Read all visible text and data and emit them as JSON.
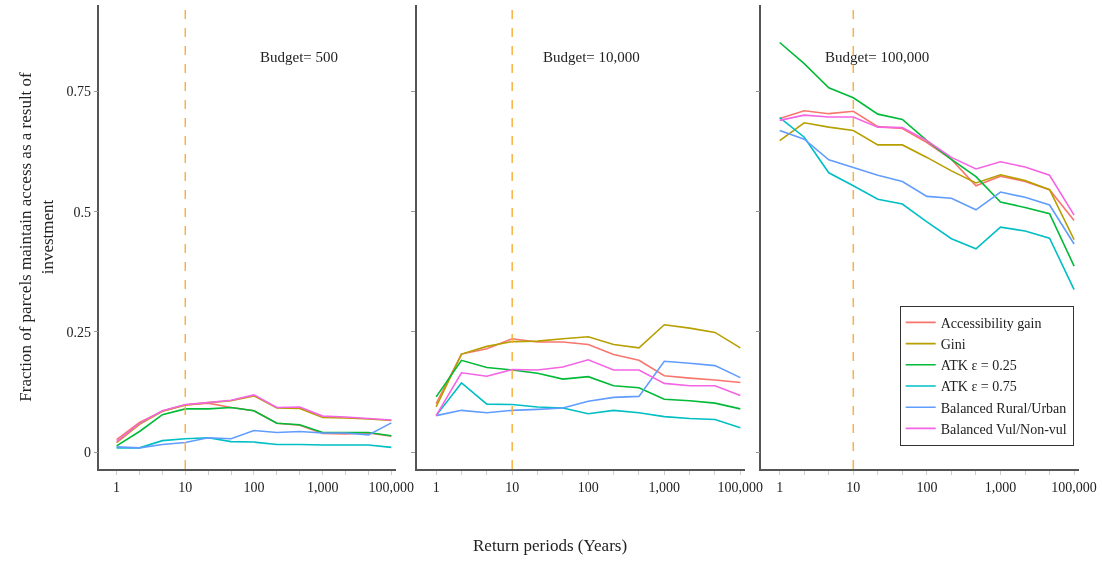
{
  "chart_data": [
    {
      "type": "line",
      "title": "Budget= 500",
      "ylabel": "Fraction of parcels maintain access as a result of investment",
      "categories": [
        "1",
        null,
        null,
        "10",
        null,
        null,
        "100",
        null,
        null,
        "1,000",
        null,
        null,
        "100,000"
      ],
      "ylim": [
        -0.035,
        0.93
      ],
      "yticks": [
        0,
        0.25,
        0.5,
        0.75
      ],
      "grid": false,
      "legend": false,
      "ref_lines": [
        {
          "axis": "x",
          "value": "10",
          "color": "#fbb13c",
          "line_style": "dashed"
        }
      ],
      "series": [
        {
          "color": "#f8766d",
          "values": [
            0.026,
            0.062,
            0.085,
            0.098,
            0.102,
            0.093,
            0.086,
            0.06,
            0.056,
            0.039,
            0.038,
            0.04,
            0.033
          ]
        },
        {
          "color": "#b79f00",
          "values": [
            0.02,
            0.058,
            0.085,
            0.098,
            0.103,
            0.107,
            0.117,
            0.092,
            0.091,
            0.072,
            0.071,
            0.069,
            0.066
          ]
        },
        {
          "color": "#00ba38",
          "values": [
            0.013,
            0.043,
            0.078,
            0.09,
            0.09,
            0.093,
            0.086,
            0.06,
            0.057,
            0.041,
            0.041,
            0.041,
            0.034
          ]
        },
        {
          "color": "#00bfc4",
          "values": [
            0.009,
            0.009,
            0.024,
            0.028,
            0.03,
            0.022,
            0.021,
            0.016,
            0.016,
            0.015,
            0.015,
            0.015,
            0.01
          ]
        },
        {
          "color": "#619cff",
          "values": [
            0.011,
            0.009,
            0.016,
            0.02,
            0.03,
            0.028,
            0.045,
            0.041,
            0.043,
            0.04,
            0.04,
            0.036,
            0.061
          ]
        },
        {
          "color": "#f564e3",
          "values": [
            0.022,
            0.06,
            0.086,
            0.099,
            0.103,
            0.108,
            0.119,
            0.093,
            0.094,
            0.075,
            0.073,
            0.07,
            0.067
          ]
        }
      ]
    },
    {
      "type": "line",
      "title": "Budget= 10,000",
      "xlabel": "Return periods (Years)",
      "categories": [
        "1",
        null,
        null,
        "10",
        null,
        null,
        "100",
        null,
        null,
        "1,000",
        null,
        null,
        "100,000"
      ],
      "ylim": [
        -0.035,
        0.93
      ],
      "yticks": [
        0,
        0.25,
        0.5,
        0.75
      ],
      "tick_labels": "x",
      "grid": false,
      "legend": false,
      "ref_lines": [
        {
          "axis": "x",
          "value": "10",
          "color": "#fbb13c",
          "line_style": "dashed"
        }
      ],
      "series": [
        {
          "color": "#f8766d",
          "values": [
            0.101,
            0.204,
            0.215,
            0.236,
            0.229,
            0.229,
            0.224,
            0.203,
            0.191,
            0.159,
            0.154,
            0.15,
            0.145
          ]
        },
        {
          "color": "#b79f00",
          "values": [
            0.094,
            0.204,
            0.22,
            0.23,
            0.231,
            0.236,
            0.24,
            0.224,
            0.217,
            0.265,
            0.258,
            0.249,
            0.217
          ]
        },
        {
          "color": "#00ba38",
          "values": [
            0.115,
            0.191,
            0.176,
            0.171,
            0.164,
            0.152,
            0.157,
            0.138,
            0.134,
            0.11,
            0.107,
            0.102,
            0.09
          ]
        },
        {
          "color": "#00bfc4",
          "values": [
            0.076,
            0.144,
            0.1,
            0.099,
            0.094,
            0.092,
            0.08,
            0.087,
            0.082,
            0.074,
            0.07,
            0.068,
            0.051
          ]
        },
        {
          "color": "#619cff",
          "values": [
            0.076,
            0.087,
            0.082,
            0.087,
            0.089,
            0.092,
            0.106,
            0.114,
            0.116,
            0.189,
            0.185,
            0.18,
            0.155
          ]
        },
        {
          "color": "#f564e3",
          "values": [
            0.076,
            0.165,
            0.158,
            0.172,
            0.171,
            0.177,
            0.192,
            0.171,
            0.171,
            0.143,
            0.138,
            0.138,
            0.118
          ]
        }
      ]
    },
    {
      "type": "line",
      "title": "Budget= 100,000",
      "categories": [
        "1",
        null,
        null,
        "10",
        null,
        null,
        "100",
        null,
        null,
        "1,000",
        null,
        null,
        "100,000"
      ],
      "ylim": [
        -0.035,
        0.93
      ],
      "yticks": [
        0,
        0.25,
        0.5,
        0.75
      ],
      "tick_labels": "x",
      "grid": false,
      "legend": "bottom right",
      "ref_lines": [
        {
          "axis": "x",
          "value": "10",
          "color": "#fbb13c",
          "line_style": "dashed"
        }
      ],
      "series": [
        {
          "name": "Accessibility gain",
          "color": "#f8766d",
          "values": [
            0.694,
            0.71,
            0.704,
            0.709,
            0.677,
            0.673,
            0.644,
            0.609,
            0.554,
            0.574,
            0.563,
            0.546,
            0.482
          ]
        },
        {
          "name": "Gini",
          "color": "#b79f00",
          "values": [
            0.648,
            0.685,
            0.676,
            0.669,
            0.639,
            0.639,
            0.613,
            0.585,
            0.56,
            0.577,
            0.565,
            0.546,
            0.442
          ]
        },
        {
          "name": "ATK ε = 0.25",
          "color": "#00ba38",
          "values": [
            0.852,
            0.808,
            0.758,
            0.737,
            0.703,
            0.692,
            0.648,
            0.609,
            0.573,
            0.52,
            0.509,
            0.496,
            0.387
          ]
        },
        {
          "name": "ATK ε = 0.75",
          "color": "#00bfc4",
          "values": [
            0.696,
            0.655,
            0.581,
            0.554,
            0.526,
            0.516,
            0.479,
            0.444,
            0.423,
            0.468,
            0.46,
            0.445,
            0.338
          ]
        },
        {
          "name": "Balanced Rural/Urban",
          "color": "#619cff",
          "values": [
            0.669,
            0.651,
            0.608,
            0.592,
            0.576,
            0.563,
            0.532,
            0.528,
            0.504,
            0.541,
            0.53,
            0.514,
            0.433
          ]
        },
        {
          "name": "Balanced Vul/Non-vul",
          "color": "#f564e3",
          "values": [
            0.69,
            0.701,
            0.697,
            0.697,
            0.676,
            0.675,
            0.648,
            0.613,
            0.589,
            0.604,
            0.593,
            0.576,
            0.493
          ]
        }
      ]
    }
  ]
}
